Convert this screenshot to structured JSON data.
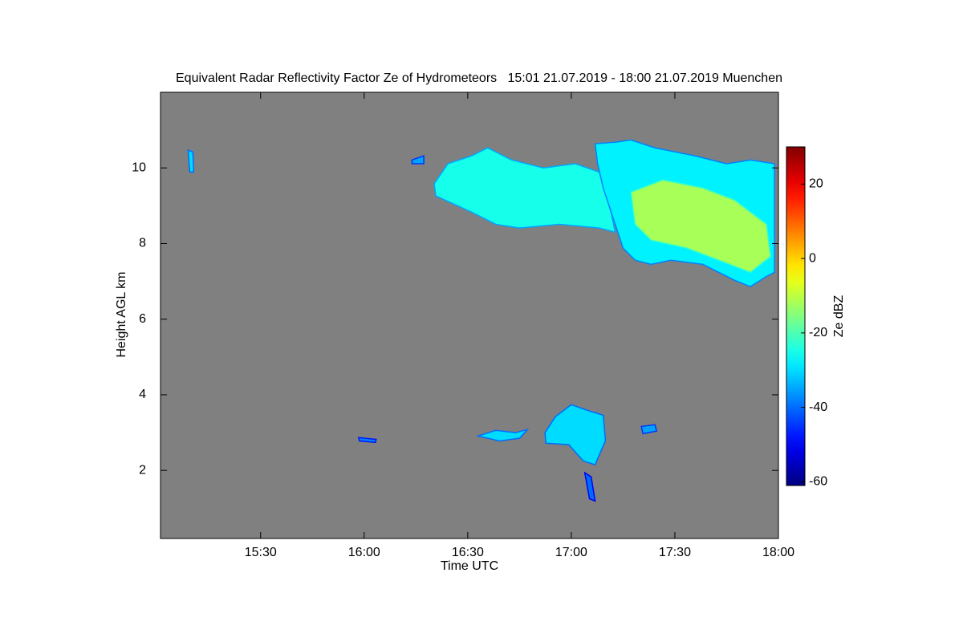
{
  "chart_data": {
    "type": "time-height",
    "title": "Equivalent Radar Reflectivity Factor Ze of Hydrometeors   15:01 21.07.2019 - 18:00 21.07.2019 Muenchen",
    "x_label": "Time UTC",
    "y_label": "Height AGL km",
    "colorbar_label": "Ze dBZ",
    "background": "#808080",
    "xlim": [
      15.0167,
      18.0
    ],
    "xticks": [
      {
        "value": 15.5,
        "label": "15:30"
      },
      {
        "value": 16.0,
        "label": "16:00"
      },
      {
        "value": 16.5,
        "label": "16:30"
      },
      {
        "value": 17.0,
        "label": "17:00"
      },
      {
        "value": 17.5,
        "label": "17:30"
      },
      {
        "value": 18.0,
        "label": "18:00"
      }
    ],
    "ylim": [
      0.2,
      12.0
    ],
    "yticks": [
      2,
      4,
      6,
      8,
      10
    ],
    "clim": [
      -61,
      30
    ],
    "cticks": [
      -60,
      -40,
      -20,
      0,
      20
    ],
    "colormap": "jet",
    "cells": [
      {
        "ze": -25,
        "x": [
          16.338,
          16.404,
          16.519,
          16.596,
          16.712,
          16.865,
          17.019,
          17.135,
          17.192,
          17.212,
          17.135,
          16.942,
          16.75,
          16.635,
          16.519,
          16.346
        ],
        "y": [
          9.58,
          10.11,
          10.32,
          10.53,
          10.21,
          10.0,
          10.11,
          9.89,
          8.83,
          8.3,
          8.41,
          8.51,
          8.41,
          8.51,
          8.83,
          9.26
        ]
      },
      {
        "ze": -28,
        "x": [
          17.115,
          17.212,
          17.288,
          17.404,
          17.596,
          17.75,
          17.865,
          17.981,
          17.981,
          17.942,
          17.865,
          17.788,
          17.635,
          17.481,
          17.385,
          17.308,
          17.25,
          17.212,
          17.154,
          17.127
        ],
        "y": [
          10.64,
          10.68,
          10.74,
          10.53,
          10.32,
          10.11,
          10.21,
          10.11,
          7.24,
          7.13,
          6.86,
          7.03,
          7.45,
          7.56,
          7.45,
          7.56,
          7.88,
          8.51,
          9.47,
          10.11
        ]
      },
      {
        "ze": -12,
        "x": [
          17.288,
          17.442,
          17.635,
          17.788,
          17.942,
          17.962,
          17.865,
          17.712,
          17.558,
          17.385,
          17.308
        ],
        "y": [
          9.36,
          9.68,
          9.47,
          9.15,
          8.51,
          7.66,
          7.24,
          7.56,
          7.88,
          8.09,
          8.51
        ]
      },
      {
        "ze": -30,
        "x": [
          15.15,
          15.173,
          15.177,
          15.158
        ],
        "y": [
          10.47,
          10.42,
          9.89,
          9.89
        ]
      },
      {
        "ze": -35,
        "x": [
          16.231,
          16.288,
          16.288,
          16.231
        ],
        "y": [
          10.21,
          10.32,
          10.11,
          10.11
        ]
      },
      {
        "ze": -30,
        "x": [
          16.55,
          16.635,
          16.731,
          16.788,
          16.75,
          16.654
        ],
        "y": [
          2.91,
          3.06,
          3.0,
          3.08,
          2.85,
          2.78
        ]
      },
      {
        "ze": -30,
        "x": [
          16.873,
          16.923,
          17.0,
          17.077,
          17.154,
          17.165,
          17.115,
          17.058,
          16.988,
          16.877
        ],
        "y": [
          3.0,
          3.42,
          3.74,
          3.59,
          3.46,
          2.79,
          2.15,
          2.25,
          2.68,
          2.72
        ]
      },
      {
        "ze": -40,
        "x": [
          17.065,
          17.096,
          17.115,
          17.088
        ],
        "y": [
          1.94,
          1.83,
          1.19,
          1.25
        ]
      },
      {
        "ze": -35,
        "x": [
          17.338,
          17.404,
          17.412,
          17.346
        ],
        "y": [
          3.16,
          3.21,
          3.04,
          2.97
        ]
      },
      {
        "ze": -38,
        "x": [
          15.973,
          16.058,
          16.054,
          15.977
        ],
        "y": [
          2.87,
          2.82,
          2.74,
          2.78
        ]
      }
    ]
  }
}
